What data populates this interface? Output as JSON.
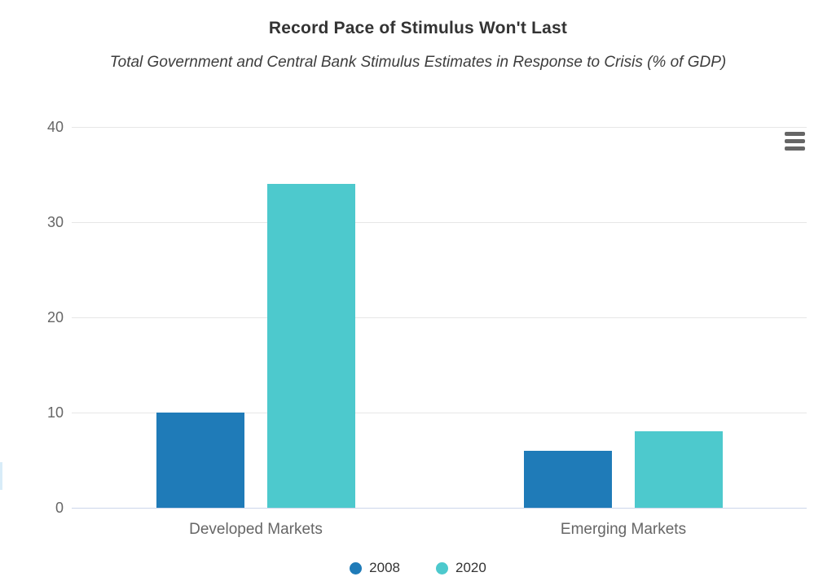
{
  "chart_data": {
    "type": "bar",
    "title": "Record Pace of Stimulus Won't Last",
    "subtitle": "Total Government and Central Bank Stimulus Estimates in Response to Crisis (% of GDP)",
    "categories": [
      "Developed Markets",
      "Emerging Markets"
    ],
    "series": [
      {
        "name": "2008",
        "color": "#1F7BB8",
        "values": [
          10,
          6
        ]
      },
      {
        "name": "2020",
        "color": "#4DC9CD",
        "values": [
          34,
          8
        ]
      }
    ],
    "ylim": [
      0,
      40
    ],
    "yticks": [
      0,
      10,
      20,
      30,
      40
    ],
    "grid": true,
    "legend_position": "bottom",
    "xlabel": "",
    "ylabel": ""
  },
  "colors": {
    "grid": "#e6e6e6",
    "axis_line": "#ccd6eb",
    "tick_label": "#666666",
    "category_label": "#666666",
    "title": "#333333",
    "legend_label": "#333333"
  },
  "icons": {
    "context_menu": "hamburger-menu"
  }
}
